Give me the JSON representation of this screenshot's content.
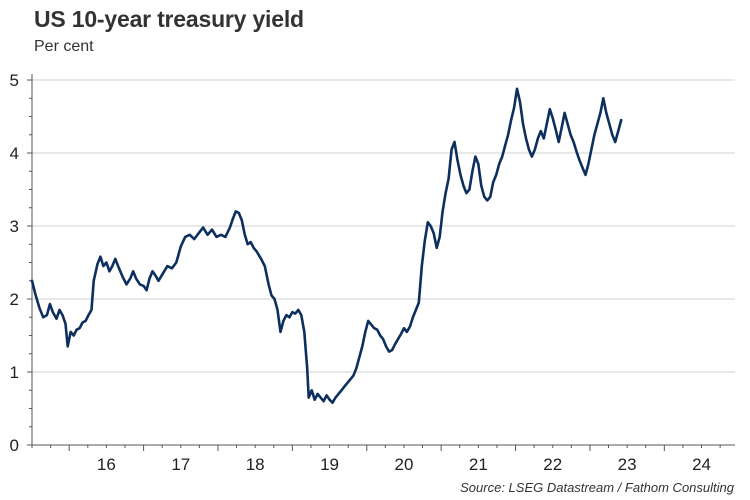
{
  "chart_data": {
    "type": "line",
    "title": "US 10-year treasury yield",
    "subtitle": "Per cent",
    "source": "Source: LSEG Datastream / Fathom Consulting",
    "xlabel": "",
    "ylabel": "",
    "xlim": [
      2015.5,
      2024.95
    ],
    "ylim": [
      0,
      5
    ],
    "y_ticks": [
      0,
      1,
      2,
      3,
      4,
      5
    ],
    "x_tick_labels": [
      {
        "label": "16",
        "year": 2016
      },
      {
        "label": "17",
        "year": 2017
      },
      {
        "label": "18",
        "year": 2018
      },
      {
        "label": "19",
        "year": 2019
      },
      {
        "label": "20",
        "year": 2020
      },
      {
        "label": "21",
        "year": 2021
      },
      {
        "label": "22",
        "year": 2022
      },
      {
        "label": "23",
        "year": 2023
      },
      {
        "label": "24",
        "year": 2024
      }
    ],
    "grid": true,
    "series": [
      {
        "color": "#0d2f5e",
        "points": [
          [
            2015.5,
            2.25
          ],
          [
            2015.55,
            2.05
          ],
          [
            2015.6,
            1.88
          ],
          [
            2015.65,
            1.75
          ],
          [
            2015.7,
            1.78
          ],
          [
            2015.74,
            1.93
          ],
          [
            2015.78,
            1.82
          ],
          [
            2015.83,
            1.73
          ],
          [
            2015.87,
            1.85
          ],
          [
            2015.91,
            1.78
          ],
          [
            2015.95,
            1.66
          ],
          [
            2015.98,
            1.35
          ],
          [
            2016.02,
            1.55
          ],
          [
            2016.06,
            1.5
          ],
          [
            2016.1,
            1.58
          ],
          [
            2016.14,
            1.6
          ],
          [
            2016.18,
            1.68
          ],
          [
            2016.22,
            1.7
          ],
          [
            2016.26,
            1.78
          ],
          [
            2016.3,
            1.85
          ],
          [
            2016.33,
            2.25
          ],
          [
            2016.38,
            2.48
          ],
          [
            2016.42,
            2.58
          ],
          [
            2016.46,
            2.45
          ],
          [
            2016.5,
            2.5
          ],
          [
            2016.54,
            2.38
          ],
          [
            2016.58,
            2.45
          ],
          [
            2016.62,
            2.55
          ],
          [
            2016.67,
            2.42
          ],
          [
            2016.72,
            2.3
          ],
          [
            2016.77,
            2.2
          ],
          [
            2016.82,
            2.28
          ],
          [
            2016.86,
            2.38
          ],
          [
            2016.9,
            2.28
          ],
          [
            2016.95,
            2.2
          ],
          [
            2017.0,
            2.18
          ],
          [
            2017.04,
            2.12
          ],
          [
            2017.08,
            2.28
          ],
          [
            2017.12,
            2.38
          ],
          [
            2017.16,
            2.32
          ],
          [
            2017.2,
            2.25
          ],
          [
            2017.26,
            2.35
          ],
          [
            2017.32,
            2.45
          ],
          [
            2017.38,
            2.42
          ],
          [
            2017.44,
            2.5
          ],
          [
            2017.5,
            2.72
          ],
          [
            2017.56,
            2.85
          ],
          [
            2017.62,
            2.88
          ],
          [
            2017.68,
            2.82
          ],
          [
            2017.74,
            2.9
          ],
          [
            2017.8,
            2.98
          ],
          [
            2017.86,
            2.88
          ],
          [
            2017.92,
            2.95
          ],
          [
            2017.98,
            2.85
          ],
          [
            2018.04,
            2.88
          ],
          [
            2018.1,
            2.85
          ],
          [
            2018.16,
            2.98
          ],
          [
            2018.2,
            3.1
          ],
          [
            2018.24,
            3.2
          ],
          [
            2018.28,
            3.18
          ],
          [
            2018.32,
            3.08
          ],
          [
            2018.36,
            2.88
          ],
          [
            2018.4,
            2.75
          ],
          [
            2018.44,
            2.78
          ],
          [
            2018.48,
            2.7
          ],
          [
            2018.52,
            2.65
          ],
          [
            2018.58,
            2.55
          ],
          [
            2018.63,
            2.45
          ],
          [
            2018.68,
            2.2
          ],
          [
            2018.72,
            2.05
          ],
          [
            2018.76,
            2.0
          ],
          [
            2018.8,
            1.85
          ],
          [
            2018.84,
            1.55
          ],
          [
            2018.88,
            1.7
          ],
          [
            2018.92,
            1.78
          ],
          [
            2018.96,
            1.75
          ],
          [
            2019.0,
            1.82
          ],
          [
            2019.04,
            1.8
          ],
          [
            2019.08,
            1.85
          ],
          [
            2019.12,
            1.78
          ],
          [
            2019.16,
            1.55
          ],
          [
            2019.2,
            1.05
          ],
          [
            2019.22,
            0.65
          ],
          [
            2019.26,
            0.75
          ],
          [
            2019.3,
            0.62
          ],
          [
            2019.34,
            0.7
          ],
          [
            2019.38,
            0.65
          ],
          [
            2019.42,
            0.6
          ],
          [
            2019.46,
            0.68
          ],
          [
            2019.5,
            0.62
          ],
          [
            2019.54,
            0.58
          ],
          [
            2019.58,
            0.65
          ],
          [
            2019.62,
            0.7
          ],
          [
            2019.66,
            0.75
          ],
          [
            2019.7,
            0.8
          ],
          [
            2019.74,
            0.85
          ],
          [
            2019.78,
            0.9
          ],
          [
            2019.82,
            0.95
          ],
          [
            2019.86,
            1.05
          ],
          [
            2019.9,
            1.2
          ],
          [
            2019.94,
            1.35
          ],
          [
            2019.98,
            1.55
          ],
          [
            2020.02,
            1.7
          ],
          [
            2020.06,
            1.65
          ],
          [
            2020.1,
            1.6
          ],
          [
            2020.14,
            1.58
          ],
          [
            2020.18,
            1.5
          ],
          [
            2020.22,
            1.45
          ],
          [
            2020.26,
            1.35
          ],
          [
            2020.3,
            1.28
          ],
          [
            2020.34,
            1.3
          ],
          [
            2020.38,
            1.38
          ],
          [
            2020.42,
            1.45
          ],
          [
            2020.46,
            1.52
          ],
          [
            2020.5,
            1.6
          ],
          [
            2020.54,
            1.55
          ],
          [
            2020.58,
            1.62
          ],
          [
            2020.62,
            1.75
          ],
          [
            2020.66,
            1.85
          ],
          [
            2020.7,
            1.95
          ],
          [
            2020.74,
            2.45
          ],
          [
            2020.78,
            2.8
          ],
          [
            2020.82,
            3.05
          ],
          [
            2020.86,
            3.0
          ],
          [
            2020.9,
            2.9
          ],
          [
            2020.94,
            2.7
          ],
          [
            2020.98,
            2.85
          ],
          [
            2021.02,
            3.2
          ],
          [
            2021.06,
            3.45
          ],
          [
            2021.1,
            3.65
          ],
          [
            2021.14,
            4.05
          ],
          [
            2021.18,
            4.15
          ],
          [
            2021.22,
            3.9
          ],
          [
            2021.26,
            3.7
          ],
          [
            2021.3,
            3.55
          ],
          [
            2021.34,
            3.45
          ],
          [
            2021.38,
            3.5
          ],
          [
            2021.42,
            3.75
          ],
          [
            2021.46,
            3.95
          ],
          [
            2021.5,
            3.85
          ],
          [
            2021.54,
            3.55
          ],
          [
            2021.58,
            3.4
          ],
          [
            2021.62,
            3.35
          ],
          [
            2021.66,
            3.4
          ],
          [
            2021.7,
            3.6
          ],
          [
            2021.74,
            3.7
          ],
          [
            2021.78,
            3.85
          ],
          [
            2021.82,
            3.95
          ],
          [
            2021.86,
            4.1
          ],
          [
            2021.9,
            4.25
          ],
          [
            2021.94,
            4.45
          ],
          [
            2021.98,
            4.62
          ],
          [
            2022.02,
            4.88
          ],
          [
            2022.06,
            4.7
          ],
          [
            2022.1,
            4.4
          ],
          [
            2022.14,
            4.2
          ],
          [
            2022.18,
            4.05
          ],
          [
            2022.22,
            3.95
          ],
          [
            2022.26,
            4.05
          ],
          [
            2022.3,
            4.2
          ],
          [
            2022.34,
            4.3
          ],
          [
            2022.38,
            4.2
          ],
          [
            2022.42,
            4.4
          ],
          [
            2022.46,
            4.6
          ],
          [
            2022.5,
            4.48
          ],
          [
            2022.54,
            4.32
          ],
          [
            2022.58,
            4.15
          ],
          [
            2022.62,
            4.35
          ],
          [
            2022.66,
            4.55
          ],
          [
            2022.7,
            4.4
          ],
          [
            2022.74,
            4.25
          ],
          [
            2022.78,
            4.15
          ],
          [
            2022.82,
            4.02
          ],
          [
            2022.86,
            3.9
          ],
          [
            2022.9,
            3.8
          ],
          [
            2022.94,
            3.7
          ],
          [
            2022.98,
            3.85
          ],
          [
            2023.02,
            4.05
          ],
          [
            2023.06,
            4.25
          ],
          [
            2023.1,
            4.4
          ],
          [
            2023.14,
            4.55
          ],
          [
            2023.18,
            4.75
          ],
          [
            2023.22,
            4.55
          ],
          [
            2023.26,
            4.4
          ],
          [
            2023.3,
            4.25
          ],
          [
            2023.34,
            4.15
          ],
          [
            2023.38,
            4.3
          ],
          [
            2023.42,
            4.45
          ]
        ]
      }
    ]
  }
}
